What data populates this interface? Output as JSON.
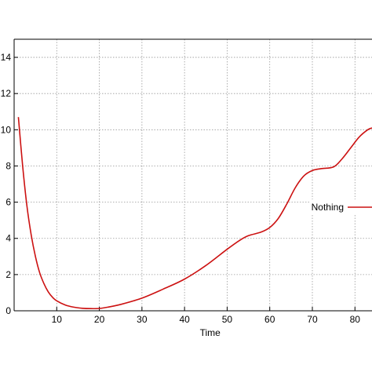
{
  "chart_data": {
    "type": "line",
    "title": "",
    "xlabel": "Time",
    "ylabel": "",
    "xlim": [
      0,
      84
    ],
    "ylim": [
      0,
      15
    ],
    "x_ticks": [
      10,
      20,
      30,
      40,
      50,
      60,
      70,
      80
    ],
    "y_ticks": [
      0,
      2,
      4,
      6,
      8,
      10,
      12,
      14
    ],
    "grid": true,
    "legend_position": "right",
    "series": [
      {
        "name": "Nothing",
        "color": "#cc1111",
        "x": [
          1,
          2,
          3,
          4,
          5,
          6,
          7,
          8,
          9,
          10,
          12,
          14,
          16,
          18,
          20,
          22,
          25,
          30,
          35,
          40,
          45,
          50,
          53,
          55,
          58,
          60,
          62,
          64,
          66,
          68,
          70,
          72,
          75,
          77,
          79,
          81,
          83,
          84
        ],
        "y": [
          10.7,
          8.0,
          5.8,
          4.2,
          3.0,
          2.1,
          1.5,
          1.05,
          0.75,
          0.55,
          0.32,
          0.2,
          0.14,
          0.12,
          0.13,
          0.2,
          0.35,
          0.7,
          1.2,
          1.75,
          2.5,
          3.4,
          3.9,
          4.15,
          4.35,
          4.6,
          5.1,
          5.9,
          6.8,
          7.45,
          7.75,
          7.85,
          7.95,
          8.4,
          9.0,
          9.6,
          10.0,
          10.1
        ]
      }
    ]
  }
}
